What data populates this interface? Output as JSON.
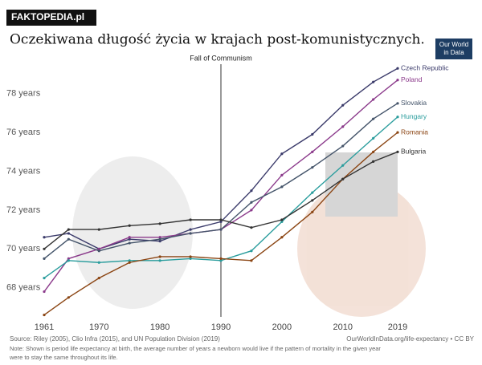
{
  "header": {
    "watermark": "FAKTOPEDIA.pl",
    "caption": "Oczekiwana długość życia w krajach post-komunistycznych.",
    "logo": [
      "Our World",
      "in Data"
    ]
  },
  "chart_data": {
    "type": "line",
    "annotation": {
      "text": "Fall of Communism",
      "x": 1990
    },
    "x": [
      1961,
      1965,
      1970,
      1975,
      1980,
      1985,
      1990,
      1995,
      2000,
      2005,
      2010,
      2015,
      2019
    ],
    "xlim": [
      1961,
      2019
    ],
    "xticks": [
      1961,
      1970,
      1980,
      1990,
      2000,
      2010,
      2019
    ],
    "ylim": [
      66.5,
      79.6
    ],
    "yticks": [
      {
        "value": 68,
        "label": "68 years"
      },
      {
        "value": 70,
        "label": "70 years"
      },
      {
        "value": 72,
        "label": "72 years"
      },
      {
        "value": 74,
        "label": "74 years"
      },
      {
        "value": 76,
        "label": "76 years"
      },
      {
        "value": 78,
        "label": "78 years"
      }
    ],
    "grid": false,
    "series": [
      {
        "name": "Czech Republic",
        "color": "#3a3a6a",
        "values": [
          70.6,
          70.8,
          70.0,
          70.5,
          70.4,
          71.0,
          71.4,
          73.0,
          74.9,
          75.9,
          77.4,
          78.6,
          79.3
        ]
      },
      {
        "name": "Poland",
        "color": "#8b3a8b",
        "values": [
          67.8,
          69.5,
          70.0,
          70.6,
          70.6,
          70.8,
          71.0,
          72.0,
          73.8,
          75.0,
          76.3,
          77.7,
          78.7
        ]
      },
      {
        "name": "Slovakia",
        "color": "#44546a",
        "values": [
          69.5,
          70.5,
          69.9,
          70.3,
          70.5,
          70.8,
          71.0,
          72.4,
          73.2,
          74.2,
          75.3,
          76.7,
          77.5
        ]
      },
      {
        "name": "Hungary",
        "color": "#2a9d9d",
        "values": [
          68.5,
          69.4,
          69.3,
          69.4,
          69.4,
          69.5,
          69.4,
          69.9,
          71.4,
          72.9,
          74.3,
          75.7,
          76.8
        ]
      },
      {
        "name": "Romania",
        "color": "#8b4513",
        "values": [
          66.6,
          67.5,
          68.5,
          69.3,
          69.6,
          69.6,
          69.5,
          69.4,
          70.6,
          71.9,
          73.6,
          75.0,
          76.0
        ]
      },
      {
        "name": "Bulgaria",
        "color": "#333333",
        "values": [
          70.0,
          71.0,
          71.0,
          71.2,
          71.3,
          71.5,
          71.5,
          71.1,
          71.5,
          72.5,
          73.6,
          74.5,
          75.0
        ]
      }
    ],
    "source": "Source: Riley (2005), Clio Infra (2015), and UN Population Division (2019)",
    "credit": "OurWorldInData.org/life-expectancy • CC BY",
    "note": [
      "Note: Shown is period life expectancy at birth, the average number of years a newborn would live if the pattern of mortality in the given year",
      "were to stay the same throughout its life."
    ]
  }
}
